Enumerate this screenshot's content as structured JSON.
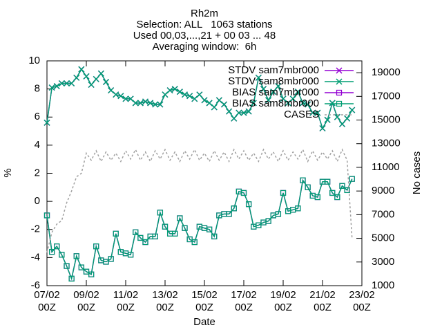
{
  "chart_data": {
    "type": "line",
    "title": [
      "Rh2m",
      "Selection: ALL   1063 stations",
      "Used 00,03,...,21 + 00 03 ... 48",
      "Averaging window:  6h"
    ],
    "x_label": "Date",
    "y_label": "%",
    "y2_label": "No cases",
    "xlim": [
      0,
      16
    ],
    "xticks": [
      {
        "value": 0,
        "label": "07/02 00Z"
      },
      {
        "value": 2,
        "label": "09/02 00Z"
      },
      {
        "value": 4,
        "label": "11/02 00Z"
      },
      {
        "value": 6,
        "label": "13/02 00Z"
      },
      {
        "value": 8,
        "label": "15/02 00Z"
      },
      {
        "value": 10,
        "label": "17/02 00Z"
      },
      {
        "value": 12,
        "label": "19/02 00Z"
      },
      {
        "value": 14,
        "label": "21/02 00Z"
      },
      {
        "value": 16,
        "label": "23/02 00Z"
      }
    ],
    "ylim": [
      -6,
      10
    ],
    "yticks": [
      -6,
      -4,
      -2,
      0,
      2,
      4,
      6,
      8,
      10
    ],
    "y2lim": [
      1000,
      20000
    ],
    "y2ticks": [
      1000,
      3000,
      5000,
      7000,
      9000,
      11000,
      13000,
      15000,
      17000,
      19000
    ],
    "x": [
      0,
      0.25,
      0.5,
      0.75,
      1,
      1.25,
      1.5,
      1.75,
      2,
      2.25,
      2.5,
      2.75,
      3,
      3.25,
      3.5,
      3.75,
      4,
      4.25,
      4.5,
      4.75,
      5,
      5.25,
      5.5,
      5.75,
      6,
      6.25,
      6.5,
      6.75,
      7,
      7.25,
      7.5,
      7.75,
      8,
      8.25,
      8.5,
      8.75,
      9,
      9.25,
      9.5,
      9.75,
      10,
      10.25,
      10.5,
      10.75,
      11,
      11.25,
      11.5,
      11.75,
      12,
      12.25,
      12.5,
      12.75,
      13,
      13.25,
      13.5,
      13.75,
      14,
      14.25,
      14.5,
      14.75,
      15,
      15.25,
      15.5
    ],
    "series": [
      {
        "name": "STDV sam7mbr000",
        "color": "#9400d3",
        "marker": "x",
        "values": [
          5.6,
          8.1,
          8.2,
          8.4,
          8.4,
          8.4,
          8.8,
          9.4,
          8.9,
          8.3,
          8.7,
          9.1,
          8.5,
          7.9,
          7.6,
          7.5,
          7.3,
          7.3,
          7.0,
          7.0,
          7.1,
          7.0,
          6.9,
          6.9,
          7.6,
          7.9,
          8.0,
          7.8,
          7.6,
          7.5,
          7.3,
          7.6,
          7.2,
          7.0,
          6.7,
          7.2,
          6.9,
          6.4,
          5.9,
          6.3,
          6.3,
          6.4,
          7.0,
          8.8,
          8.0,
          7.2,
          7.8,
          8.2,
          7.3,
          7.0,
          7.3,
          7.8,
          7.0,
          6.9,
          6.3,
          6.3,
          5.2,
          5.8,
          7.0,
          6.0,
          5.5,
          5.9,
          6.5
        ]
      },
      {
        "name": "STDV sam8mbr000",
        "color": "#009e73",
        "marker": "x",
        "values": [
          5.6,
          8.1,
          8.2,
          8.4,
          8.4,
          8.4,
          8.8,
          9.4,
          8.9,
          8.3,
          8.7,
          9.1,
          8.5,
          7.9,
          7.6,
          7.5,
          7.3,
          7.3,
          7.0,
          7.0,
          7.1,
          7.0,
          6.9,
          6.9,
          7.6,
          7.9,
          8.0,
          7.8,
          7.6,
          7.5,
          7.3,
          7.6,
          7.2,
          7.0,
          6.7,
          7.2,
          6.9,
          6.4,
          5.9,
          6.3,
          6.3,
          6.4,
          7.0,
          8.8,
          8.0,
          7.2,
          7.8,
          8.2,
          7.3,
          7.0,
          7.3,
          7.8,
          7.0,
          6.9,
          6.3,
          6.3,
          5.2,
          5.8,
          7.0,
          6.0,
          5.5,
          5.9,
          6.5
        ]
      },
      {
        "name": "BIAS sam7mbr000",
        "color": "#9400d3",
        "marker": "square",
        "values": [
          -1.0,
          -3.6,
          -3.2,
          -3.8,
          -4.6,
          -5.5,
          -3.9,
          -4.7,
          -5.0,
          -5.2,
          -3.2,
          -4.2,
          -4.3,
          -4.1,
          -2.3,
          -3.6,
          -3.7,
          -3.8,
          -2.2,
          -2.6,
          -2.9,
          -2.5,
          -2.5,
          -0.8,
          -1.8,
          -2.3,
          -2.3,
          -1.2,
          -1.9,
          -2.7,
          -2.9,
          -1.8,
          -1.9,
          -2.0,
          -2.5,
          -1.0,
          -0.9,
          -0.9,
          -0.5,
          0.7,
          0.6,
          -0.2,
          -1.8,
          -1.7,
          -1.5,
          -1.4,
          -1.0,
          -0.9,
          0.6,
          -0.7,
          -0.6,
          -0.5,
          1.5,
          1.0,
          0.4,
          0.3,
          1.4,
          1.4,
          0.6,
          0.3,
          1.1,
          0.8,
          1.6
        ]
      },
      {
        "name": "BIAS sam8mbr000",
        "color": "#009e73",
        "marker": "square",
        "values": [
          -1.0,
          -3.6,
          -3.2,
          -3.8,
          -4.6,
          -5.5,
          -3.9,
          -4.7,
          -5.0,
          -5.2,
          -3.2,
          -4.2,
          -4.3,
          -4.1,
          -2.3,
          -3.6,
          -3.7,
          -3.8,
          -2.2,
          -2.6,
          -2.9,
          -2.5,
          -2.5,
          -0.8,
          -1.8,
          -2.3,
          -2.3,
          -1.2,
          -1.9,
          -2.7,
          -2.9,
          -1.8,
          -1.9,
          -2.0,
          -2.5,
          -1.0,
          -0.9,
          -0.9,
          -0.5,
          0.7,
          0.6,
          -0.2,
          -1.8,
          -1.7,
          -1.5,
          -1.4,
          -1.0,
          -0.9,
          0.6,
          -0.7,
          -0.6,
          -0.5,
          1.5,
          1.0,
          0.4,
          0.3,
          1.4,
          1.4,
          0.6,
          0.3,
          1.1,
          0.8,
          1.6
        ]
      },
      {
        "name": "CASES",
        "color": "#a0a0a0",
        "dashed": true,
        "axis": "y2",
        "values": [
          3800,
          5500,
          6200,
          6500,
          8000,
          9000,
          10200,
          10500,
          12200,
          11600,
          12400,
          11500,
          12300,
          11600,
          12200,
          11500,
          12400,
          11700,
          12500,
          11600,
          12300,
          11500,
          12400,
          11700,
          12500,
          11600,
          12300,
          11500,
          12400,
          11700,
          12500,
          11600,
          12200,
          11500,
          12400,
          11600,
          12300,
          11500,
          12500,
          11700,
          12400,
          11600,
          12200,
          11500,
          12500,
          11700,
          12300,
          11500,
          12400,
          11600,
          12300,
          11700,
          12500,
          11500,
          12400,
          11600,
          12300,
          11700,
          12400,
          11500,
          12500,
          11600,
          5000
        ]
      }
    ],
    "legend": "top-right"
  }
}
